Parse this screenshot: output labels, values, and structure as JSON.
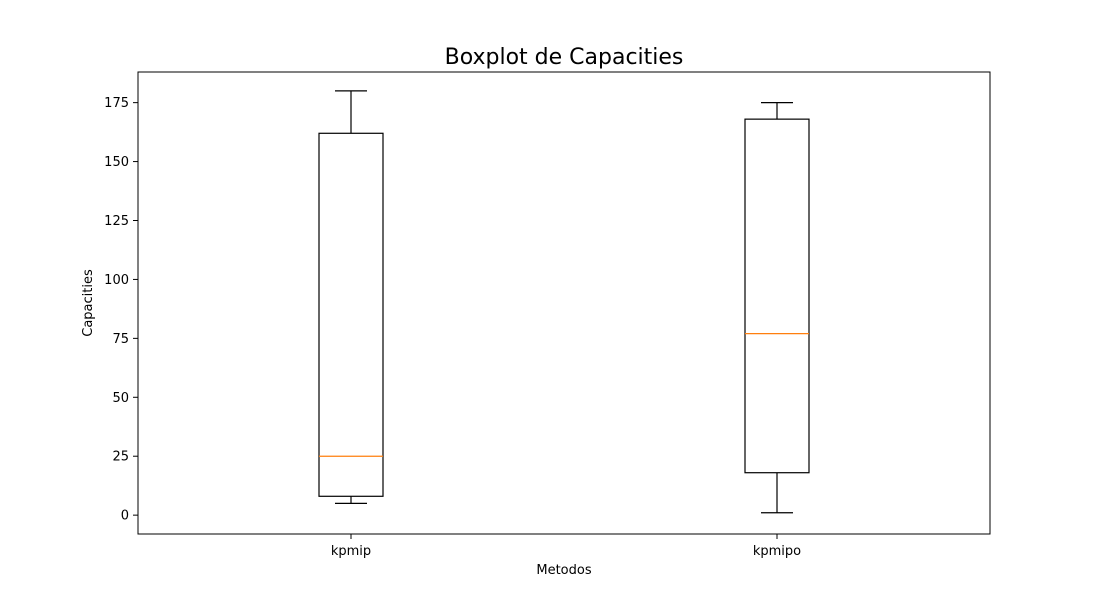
{
  "chart_data": {
    "type": "boxplot",
    "title": "Boxplot de Capacities",
    "xlabel": "Metodos",
    "ylabel": "Capacities",
    "ylim": [
      -8,
      188
    ],
    "yticks": [
      0,
      25,
      50,
      75,
      100,
      125,
      150,
      175
    ],
    "grid": false,
    "categories": [
      "kpmip",
      "kpmipo"
    ],
    "boxes": [
      {
        "category": "kpmip",
        "whisker_low": 5,
        "q1": 8,
        "median": 25,
        "q3": 162,
        "whisker_high": 180
      },
      {
        "category": "kpmipo",
        "whisker_low": 1,
        "q1": 18,
        "median": 77,
        "q3": 168,
        "whisker_high": 175
      }
    ],
    "colors": {
      "box": "#000000",
      "median": "#ff7f0e"
    }
  }
}
